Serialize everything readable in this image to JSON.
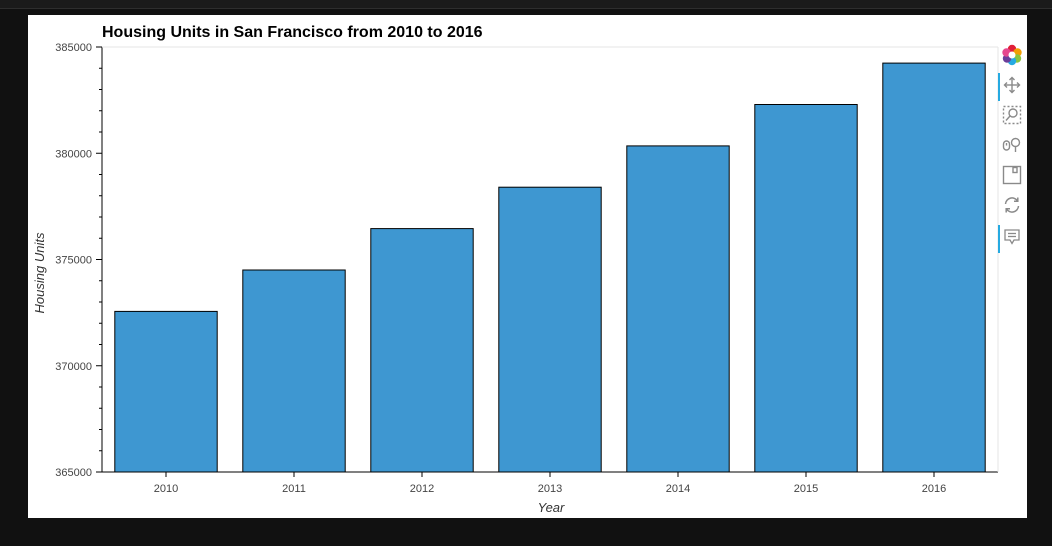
{
  "window": {
    "background": "#111111",
    "plot_background": "#ffffff"
  },
  "toolbar": {
    "tools": [
      {
        "name": "bokeh-logo-icon",
        "active": false
      },
      {
        "name": "pan-icon",
        "active": true
      },
      {
        "name": "box-zoom-icon",
        "active": false
      },
      {
        "name": "wheel-zoom-icon",
        "active": false
      },
      {
        "name": "save-icon",
        "active": false
      },
      {
        "name": "reset-icon",
        "active": false
      },
      {
        "name": "hover-icon",
        "active": true
      }
    ]
  },
  "chart_data": {
    "type": "bar",
    "title": "Housing Units in San Francisco from 2010 to 2016",
    "xlabel": "Year",
    "ylabel": "Housing Units",
    "categories": [
      "2010",
      "2011",
      "2012",
      "2013",
      "2014",
      "2015",
      "2016"
    ],
    "values": [
      372560,
      374507,
      376454,
      378401,
      380348,
      382295,
      384242
    ],
    "ylim": [
      365000,
      385000
    ],
    "yticks": [
      "365000",
      "370000",
      "375000",
      "380000",
      "385000"
    ],
    "bar_color": "#3e97d1",
    "bar_outline": "#000000",
    "grid": false,
    "legend": "none"
  }
}
